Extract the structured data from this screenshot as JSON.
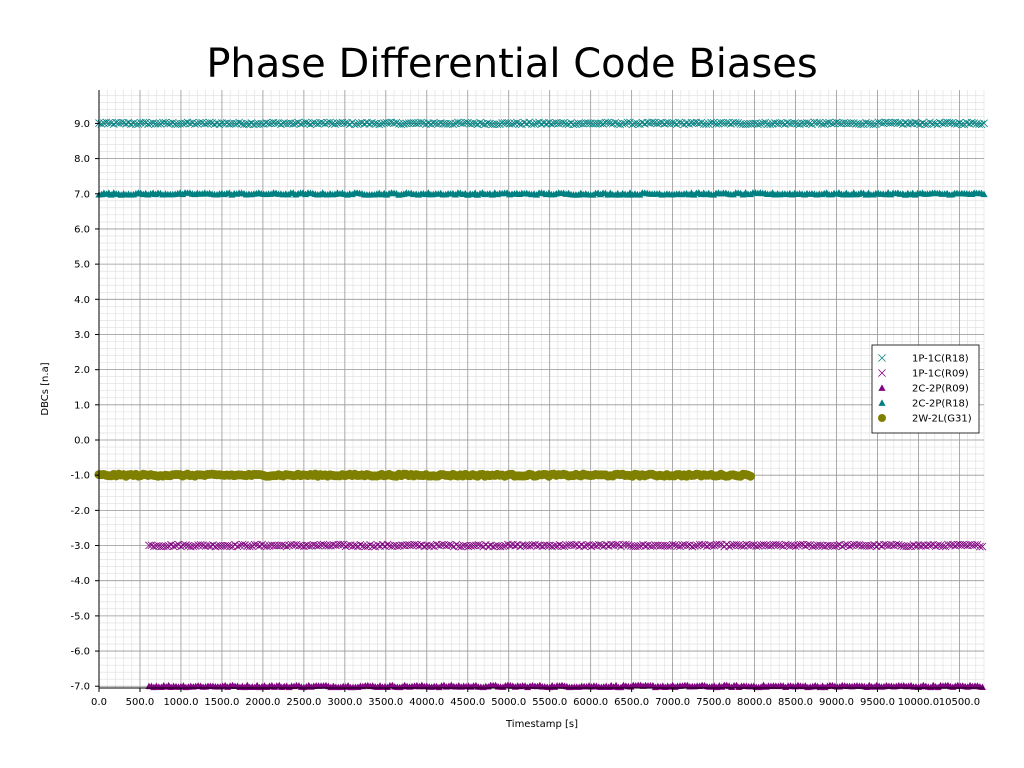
{
  "chart_data": {
    "type": "scatter",
    "title": "Phase Differential Code Biases",
    "xlabel": "Timestamp [s]",
    "ylabel": "DBCs [n.a]",
    "xlim": [
      0,
      10800
    ],
    "ylim": [
      -7.05,
      9.95
    ],
    "x_ticks": [
      0,
      500,
      1000,
      1500,
      2000,
      2500,
      3000,
      3500,
      4000,
      4500,
      5000,
      5500,
      6000,
      6500,
      7000,
      7500,
      8000,
      8500,
      9000,
      9500,
      10000,
      10500
    ],
    "x_tick_labels": [
      "0.0",
      "500.0",
      "1000.0",
      "1500.0",
      "2000.0",
      "2500.0",
      "3000.0",
      "3500.0",
      "4000.0",
      "4500.0",
      "5000.0",
      "5500.0",
      "6000.0",
      "6500.0",
      "7000.0",
      "7500.0",
      "8000.0",
      "8500.0",
      "9000.0",
      "9500.0",
      "10000.0",
      "10500.0"
    ],
    "y_ticks": [
      9,
      8,
      7,
      6,
      5,
      4,
      3,
      2,
      1,
      0,
      -1,
      -2,
      -3,
      -4,
      -5,
      -6,
      -7
    ],
    "y_tick_labels": [
      "9.0",
      "8.0",
      "7.0",
      "6.0",
      "5.0",
      "4.0",
      "3.0",
      "2.0",
      "1.0",
      "0.0",
      "-1.0",
      "-2.0",
      "-3.0",
      "-4.0",
      "-5.0",
      "-6.0",
      "-7.0"
    ],
    "grid": true,
    "legend_position": "right",
    "series": [
      {
        "name": "1P-1C(R18)",
        "marker": "x",
        "color": "#008080",
        "x_start": 0,
        "x_end": 10800,
        "y": 9.0
      },
      {
        "name": "1P-1C(R09)",
        "marker": "x",
        "color": "#800080",
        "x_start": 610,
        "x_end": 10800,
        "y": -3.0
      },
      {
        "name": "2C-2P(R09)",
        "marker": "triangle",
        "color": "#800080",
        "x_start": 610,
        "x_end": 10800,
        "y": -7.0
      },
      {
        "name": "2C-2P(R18)",
        "marker": "triangle",
        "color": "#008080",
        "x_start": 0,
        "x_end": 10800,
        "y": 7.0
      },
      {
        "name": "2W-2L(G31)",
        "marker": "circle",
        "color": "#808000",
        "x_start": 0,
        "x_end": 7950,
        "y": -1.0
      }
    ]
  }
}
